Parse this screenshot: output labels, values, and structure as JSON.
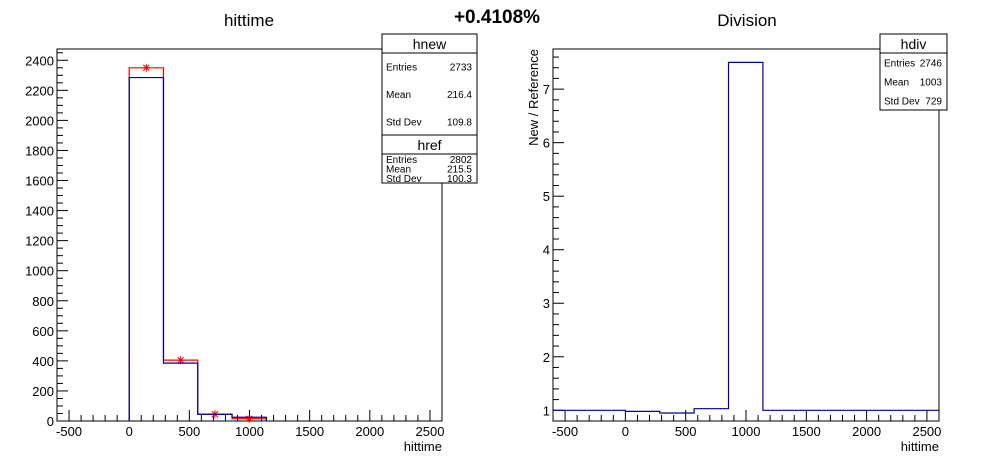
{
  "header": {
    "percent": "+0.4108%"
  },
  "chart_data": [
    {
      "type": "histogram",
      "title": "hittime",
      "xlabel": "hittime",
      "ylabel": "",
      "xlim": [
        -600,
        2600
      ],
      "ylim": [
        0,
        2475
      ],
      "xticks": [
        -500,
        0,
        500,
        1000,
        1500,
        2000,
        2500
      ],
      "yticks": [
        0,
        200,
        400,
        600,
        800,
        1000,
        1200,
        1400,
        1600,
        1800,
        2000,
        2200,
        2400
      ],
      "bin_edges": [
        0,
        285,
        570,
        855,
        1140
      ],
      "series": [
        {
          "name": "hnew",
          "color": "#ff0000",
          "values": [
            2350,
            405,
            45,
            15
          ],
          "markers": true
        },
        {
          "name": "href",
          "color": "#000099",
          "values": [
            2285,
            385,
            45,
            25
          ],
          "markers": false
        }
      ],
      "stats": [
        {
          "name": "hnew",
          "rows": [
            {
              "label": "Entries",
              "value": "2733"
            },
            {
              "label": "Mean",
              "value": "216.4"
            },
            {
              "label": "Std Dev",
              "value": "109.8"
            }
          ]
        },
        {
          "name": "href",
          "rows": [
            {
              "label": "Entries",
              "value": "2802"
            },
            {
              "label": "Mean",
              "value": "215.5"
            },
            {
              "label": "Std Dev",
              "value": "100.3"
            }
          ]
        }
      ]
    },
    {
      "type": "histogram",
      "title": "Division",
      "xlabel": "hittime",
      "ylabel": "New / Reference",
      "xlim": [
        -600,
        2600
      ],
      "ylim": [
        0.8,
        7.75
      ],
      "xticks": [
        -500,
        0,
        500,
        1000,
        1500,
        2000,
        2500
      ],
      "yticks": [
        1,
        2,
        3,
        4,
        5,
        6,
        7
      ],
      "bin_edges": [
        -600,
        0,
        285,
        570,
        855,
        1140,
        2600
      ],
      "series": [
        {
          "name": "hdiv",
          "color": "#000099",
          "values": [
            1.0,
            0.98,
            0.95,
            1.03,
            7.5,
            1.0
          ],
          "markers": false
        }
      ],
      "stats": [
        {
          "name": "hdiv",
          "rows": [
            {
              "label": "Entries",
              "value": "2746"
            },
            {
              "label": "Mean",
              "value": "1003"
            },
            {
              "label": "Std Dev",
              "value": "729"
            }
          ]
        }
      ]
    }
  ]
}
